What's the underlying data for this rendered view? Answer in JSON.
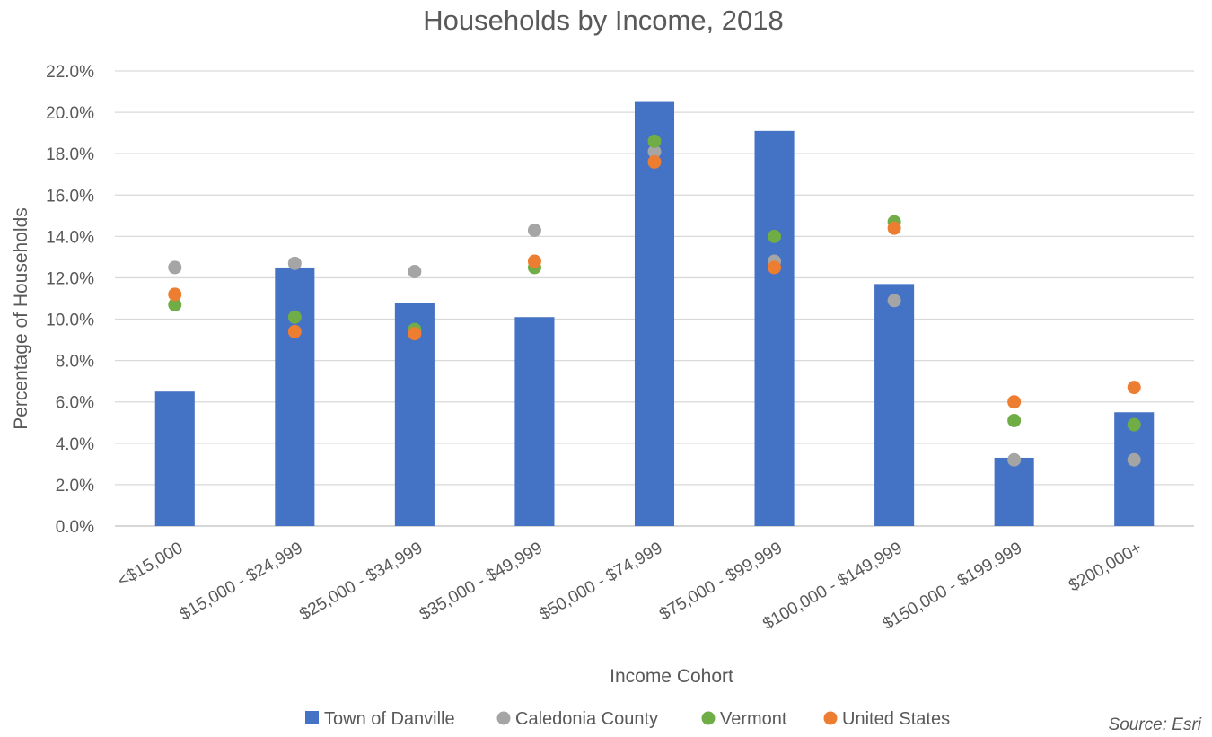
{
  "chart_data": {
    "type": "bar",
    "title": "Households by Income, 2018",
    "xlabel": "Income Cohort",
    "ylabel": "Percentage of Households",
    "source": "Source: Esri",
    "categories": [
      "<$15,000",
      "$15,000 - $24,999",
      "$25,000 - $34,999",
      "$35,000 - $49,999",
      "$50,000 - $74,999",
      "$75,000 - $99,999",
      "$100,000 - $149,999",
      "$150,000 - $199,999",
      "$200,000+"
    ],
    "ylim": [
      0,
      22
    ],
    "yticks": [
      "0.0%",
      "2.0%",
      "4.0%",
      "6.0%",
      "8.0%",
      "10.0%",
      "12.0%",
      "14.0%",
      "16.0%",
      "18.0%",
      "20.0%",
      "22.0%"
    ],
    "grid": true,
    "legend_position": "bottom",
    "series": [
      {
        "name": "Town of Danville",
        "kind": "bar",
        "color": "#4472C4",
        "values": [
          6.5,
          12.5,
          10.8,
          10.1,
          20.5,
          19.1,
          11.7,
          3.3,
          5.5
        ]
      },
      {
        "name": "Caledonia County",
        "kind": "point",
        "color": "#A5A5A5",
        "values": [
          12.5,
          12.7,
          12.3,
          14.3,
          18.1,
          12.8,
          10.9,
          3.2,
          3.2
        ]
      },
      {
        "name": "Vermont",
        "kind": "point",
        "color": "#70AD47",
        "values": [
          10.7,
          10.1,
          9.5,
          12.5,
          18.6,
          14.0,
          14.7,
          5.1,
          4.9
        ]
      },
      {
        "name": "United States",
        "kind": "point",
        "color": "#ED7D31",
        "values": [
          11.2,
          9.4,
          9.3,
          12.8,
          17.6,
          12.5,
          14.4,
          6.0,
          6.7
        ]
      }
    ]
  }
}
